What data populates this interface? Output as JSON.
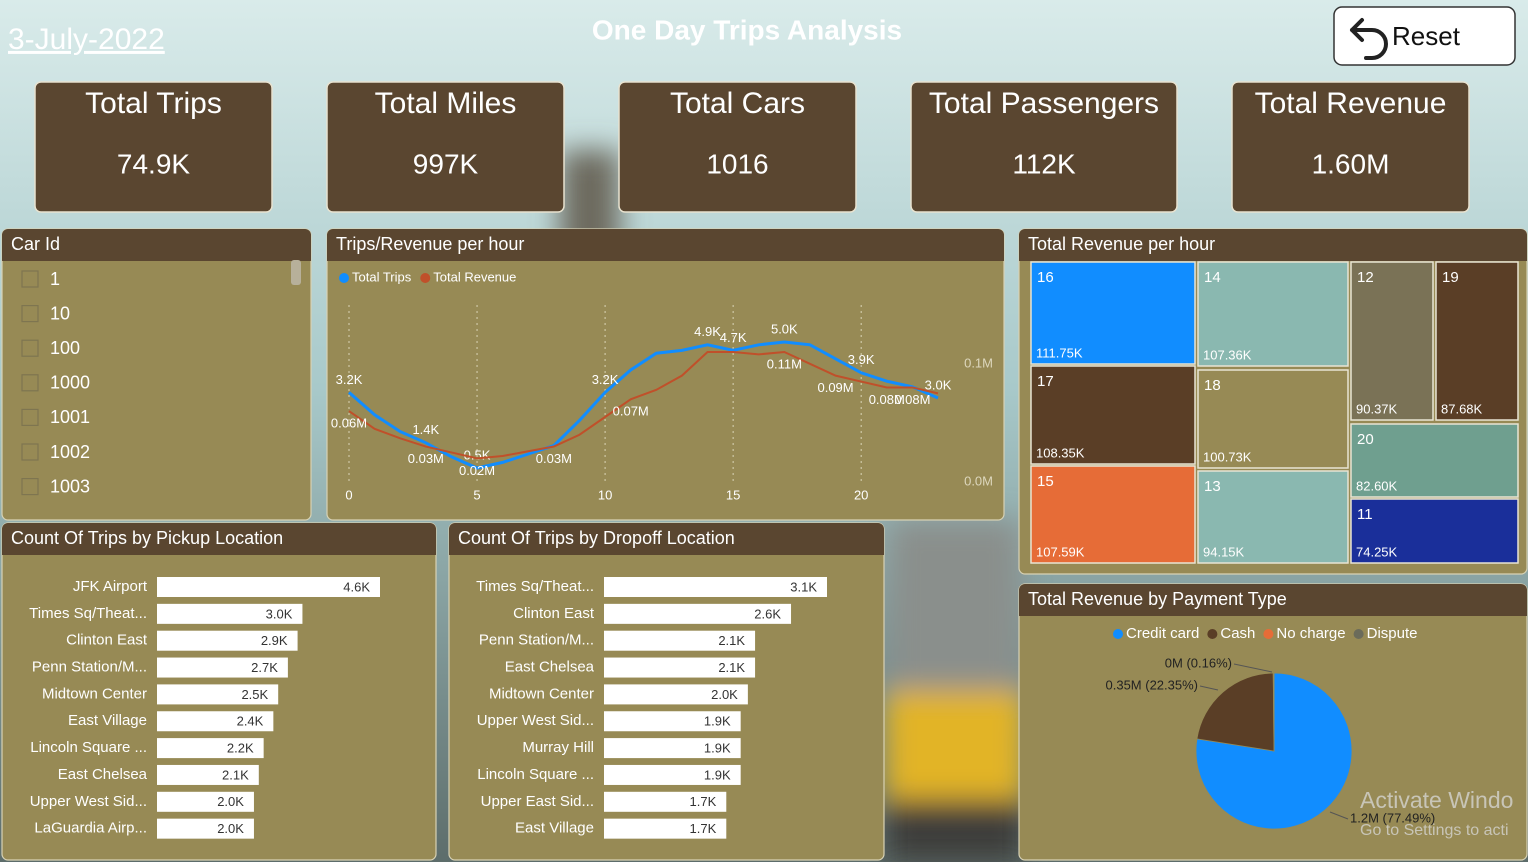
{
  "date": "3-July-2022",
  "title": "One Day Trips Analysis",
  "reset": "Reset",
  "kpis": [
    {
      "label": "Total Trips",
      "value": "74.9K"
    },
    {
      "label": "Total Miles",
      "value": "997K"
    },
    {
      "label": "Total Cars",
      "value": "1016"
    },
    {
      "label": "Total Passengers",
      "value": "112K"
    },
    {
      "label": "Total Revenue",
      "value": "1.60M"
    }
  ],
  "slicer": {
    "title": "Car Id",
    "items": [
      "1",
      "10",
      "100",
      "1000",
      "1001",
      "1002",
      "1003"
    ]
  },
  "watermark": [
    "Activate Windo",
    "Go to Settings to acti"
  ],
  "chart_data": [
    {
      "type": "line",
      "title": "Trips/Revenue per hour",
      "x": [
        0,
        1,
        2,
        3,
        4,
        5,
        6,
        7,
        8,
        9,
        10,
        11,
        12,
        13,
        14,
        15,
        16,
        17,
        18,
        19,
        20,
        21,
        22,
        23
      ],
      "xlim": [
        0,
        23
      ],
      "xticks": [
        0,
        5,
        10,
        15,
        20
      ],
      "ylim": [
        0,
        6500
      ],
      "y2lim": [
        0,
        154000
      ],
      "y2ticks": [
        {
          "value": 0,
          "label": "0.0M"
        },
        {
          "value": 100000,
          "label": "0.1M"
        }
      ],
      "grid": true,
      "legend": "top-left",
      "series": [
        {
          "name": "Total Trips",
          "color": "#118dff",
          "values": [
            3200,
            2400,
            1800,
            1400,
            900,
            500,
            700,
            1000,
            1300,
            2200,
            3200,
            4000,
            4600,
            4700,
            4900,
            4700,
            4900,
            5000,
            4900,
            4400,
            3900,
            3600,
            3400,
            3000
          ],
          "value_labels": [
            "3.2K",
            null,
            null,
            "1.4K",
            null,
            "0.5K",
            null,
            null,
            null,
            null,
            "3.2K",
            null,
            null,
            null,
            "4.9K",
            "4.7K",
            null,
            "5.0K",
            null,
            null,
            "3.9K",
            null,
            null,
            "3.0K"
          ]
        },
        {
          "name": "Total Revenue",
          "color": "#c0502a",
          "axis": "y2",
          "values": [
            60000,
            45000,
            37000,
            30000,
            25000,
            20000,
            22000,
            26000,
            30000,
            40000,
            55000,
            70000,
            78000,
            90000,
            110000,
            110000,
            108000,
            110000,
            100000,
            90000,
            85000,
            80000,
            80000,
            75000
          ],
          "value_labels": [
            "0.06M",
            null,
            null,
            "0.03M",
            null,
            "0.02M",
            null,
            null,
            "0.03M",
            null,
            null,
            "0.07M",
            null,
            null,
            null,
            null,
            null,
            "0.11M",
            null,
            "0.09M",
            null,
            "0.08M",
            "0.08M",
            null
          ]
        }
      ]
    },
    {
      "type": "treemap",
      "title": "Total Revenue per hour",
      "categories": [
        "16",
        "14",
        "12",
        "19",
        "17",
        "18",
        "20",
        "15",
        "13",
        "11"
      ],
      "values": [
        111750,
        107360,
        90370,
        87680,
        108350,
        100730,
        82600,
        107590,
        94150,
        74250
      ],
      "value_labels": [
        "111.75K",
        "107.36K",
        "90.37K",
        "87.68K",
        "108.35K",
        "100.73K",
        "82.60K",
        "107.59K",
        "94.15K",
        "74.25K"
      ],
      "colors": [
        "#118dff",
        "#8ab8b0",
        "#7a7256",
        "#5a3e26",
        "#5a3e26",
        "#978a55",
        "#6f9f8f",
        "#e66c37",
        "#8ab8b0",
        "#1a2f9a"
      ]
    },
    {
      "type": "bar",
      "orientation": "horizontal",
      "title": "Count Of Trips by Pickup Location",
      "categories": [
        "JFK Airport",
        "Times Sq/Theat...",
        "Clinton East",
        "Penn Station/M...",
        "Midtown Center",
        "East Village",
        "Lincoln Square ...",
        "East Chelsea",
        "Upper West Sid...",
        "LaGuardia Airp..."
      ],
      "values": [
        4600,
        3000,
        2900,
        2700,
        2500,
        2400,
        2200,
        2100,
        2000,
        2000
      ],
      "value_labels": [
        "4.6K",
        "3.0K",
        "2.9K",
        "2.7K",
        "2.5K",
        "2.4K",
        "2.2K",
        "2.1K",
        "2.0K",
        "2.0K"
      ],
      "xlim": [
        0,
        4600
      ],
      "color": "#ffffff"
    },
    {
      "type": "bar",
      "orientation": "horizontal",
      "title": "Count Of Trips by Dropoff Location",
      "categories": [
        "Times Sq/Theat...",
        "Clinton East",
        "Penn Station/M...",
        "East Chelsea",
        "Midtown Center",
        "Upper West Sid...",
        "Murray Hill",
        "Lincoln Square ...",
        "Upper East Sid...",
        "East Village"
      ],
      "values": [
        3100,
        2600,
        2100,
        2100,
        2000,
        1900,
        1900,
        1900,
        1700,
        1700
      ],
      "value_labels": [
        "3.1K",
        "2.6K",
        "2.1K",
        "2.1K",
        "2.0K",
        "1.9K",
        "1.9K",
        "1.9K",
        "1.7K",
        "1.7K"
      ],
      "xlim": [
        0,
        3100
      ],
      "color": "#ffffff"
    },
    {
      "type": "pie",
      "title": "Total Revenue by Payment Type",
      "legend": "top",
      "categories": [
        "Credit card",
        "Cash",
        "No charge",
        "Dispute"
      ],
      "values": [
        77.49,
        22.35,
        0.16,
        0
      ],
      "value_labels": [
        "1.2M (77.49%)",
        "0.35M (22.35%)",
        "0M (0.16%)",
        null
      ],
      "colors": [
        "#118dff",
        "#5a3e26",
        "#e66c37",
        "#6b6b5a"
      ]
    }
  ]
}
